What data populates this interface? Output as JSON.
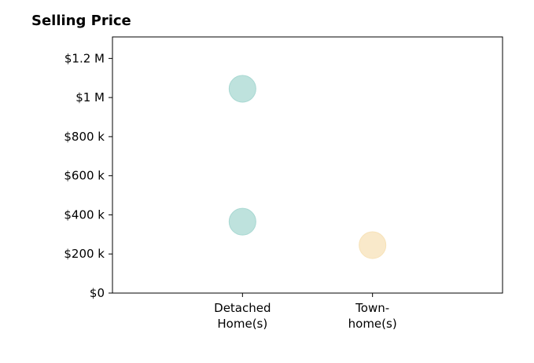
{
  "chart_data": {
    "type": "scatter",
    "title": "Selling Price",
    "xlabel": "",
    "ylabel": "",
    "categories": [
      [
        "Detached",
        "Home(s)"
      ],
      [
        "Town-",
        "home(s)"
      ]
    ],
    "y_ticks": [
      {
        "value": 0,
        "label": "$0"
      },
      {
        "value": 200000,
        "label": "$200 k"
      },
      {
        "value": 400000,
        "label": "$400 k"
      },
      {
        "value": 600000,
        "label": "$600 k"
      },
      {
        "value": 800000,
        "label": "$800 k"
      },
      {
        "value": 1000000,
        "label": "$1 M"
      },
      {
        "value": 1200000,
        "label": "$1.2 M"
      }
    ],
    "ylim": [
      0,
      1310000
    ],
    "xlim": [
      0,
      3
    ],
    "grid": false,
    "points": [
      {
        "category": 0,
        "value": 1045000,
        "color": "#a8d8d2"
      },
      {
        "category": 0,
        "value": 365000,
        "color": "#a8d8d2"
      },
      {
        "category": 1,
        "value": 245000,
        "color": "#f7e2b8"
      }
    ]
  }
}
